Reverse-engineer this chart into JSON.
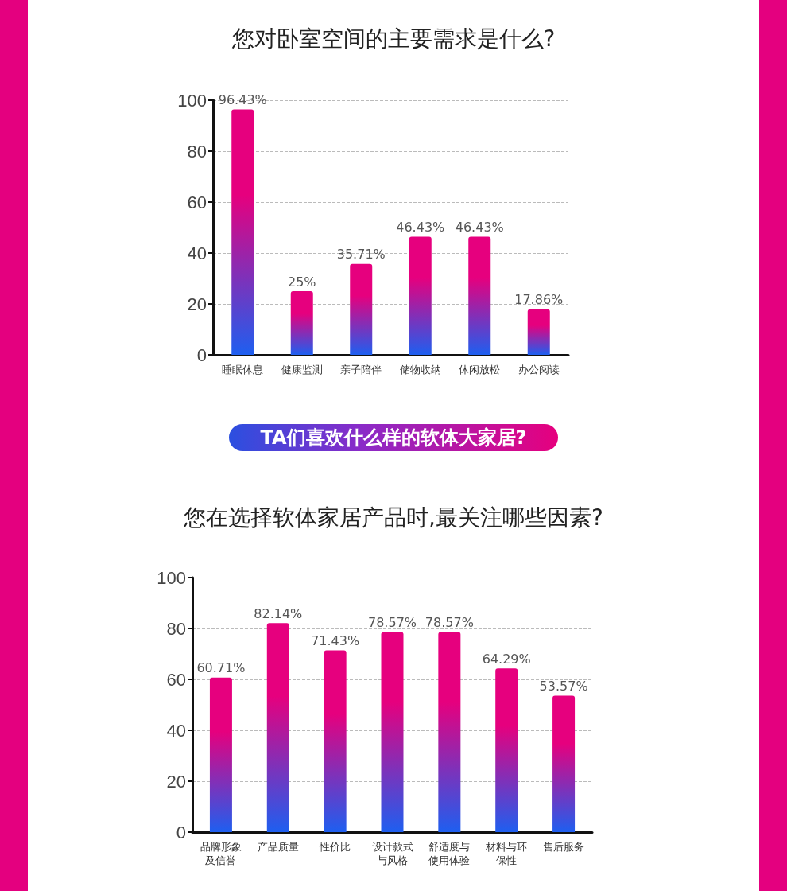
{
  "chart_data": [
    {
      "type": "bar",
      "title": "您对卧室空间的主要需求是什么?",
      "categories": [
        "睡眠休息",
        "健康监测",
        "亲子陪伴",
        "储物收纳",
        "休闲放松",
        "办公阅读"
      ],
      "series": [
        {
          "color": "#e6007e",
          "values": [
            96.43,
            25,
            35.71,
            46.43,
            46.43,
            17.86
          ],
          "value_labels": [
            "96.43%",
            "25%",
            "35.71%",
            "46.43%",
            "46.43%",
            "17.86%"
          ]
        }
      ],
      "ylim": [
        0,
        100
      ],
      "yticks": [
        0,
        20,
        40,
        60,
        80,
        100
      ],
      "grid": "y"
    },
    {
      "type": "bar",
      "subtitle": "TA们喜欢什么样的软体大家居?",
      "title": "您在选择软体家居产品时,最关注哪些因素?",
      "categories": [
        "品牌形象及信誉",
        "产品质量",
        "性价比",
        "设计款式与风格",
        "舒适度与使用体验",
        "材料与环保性",
        "售后服务"
      ],
      "series": [
        {
          "color": "#e6007e",
          "values": [
            60.71,
            82.14,
            71.43,
            78.57,
            78.57,
            64.29,
            53.57
          ],
          "value_labels": [
            "60.71%",
            "82.14%",
            "71.43%",
            "78.57%",
            "78.57%",
            "64.29%",
            "53.57%"
          ]
        }
      ],
      "ylim": [
        0,
        100
      ],
      "yticks": [
        0,
        20,
        40,
        60,
        80,
        100
      ],
      "grid": "y"
    }
  ]
}
